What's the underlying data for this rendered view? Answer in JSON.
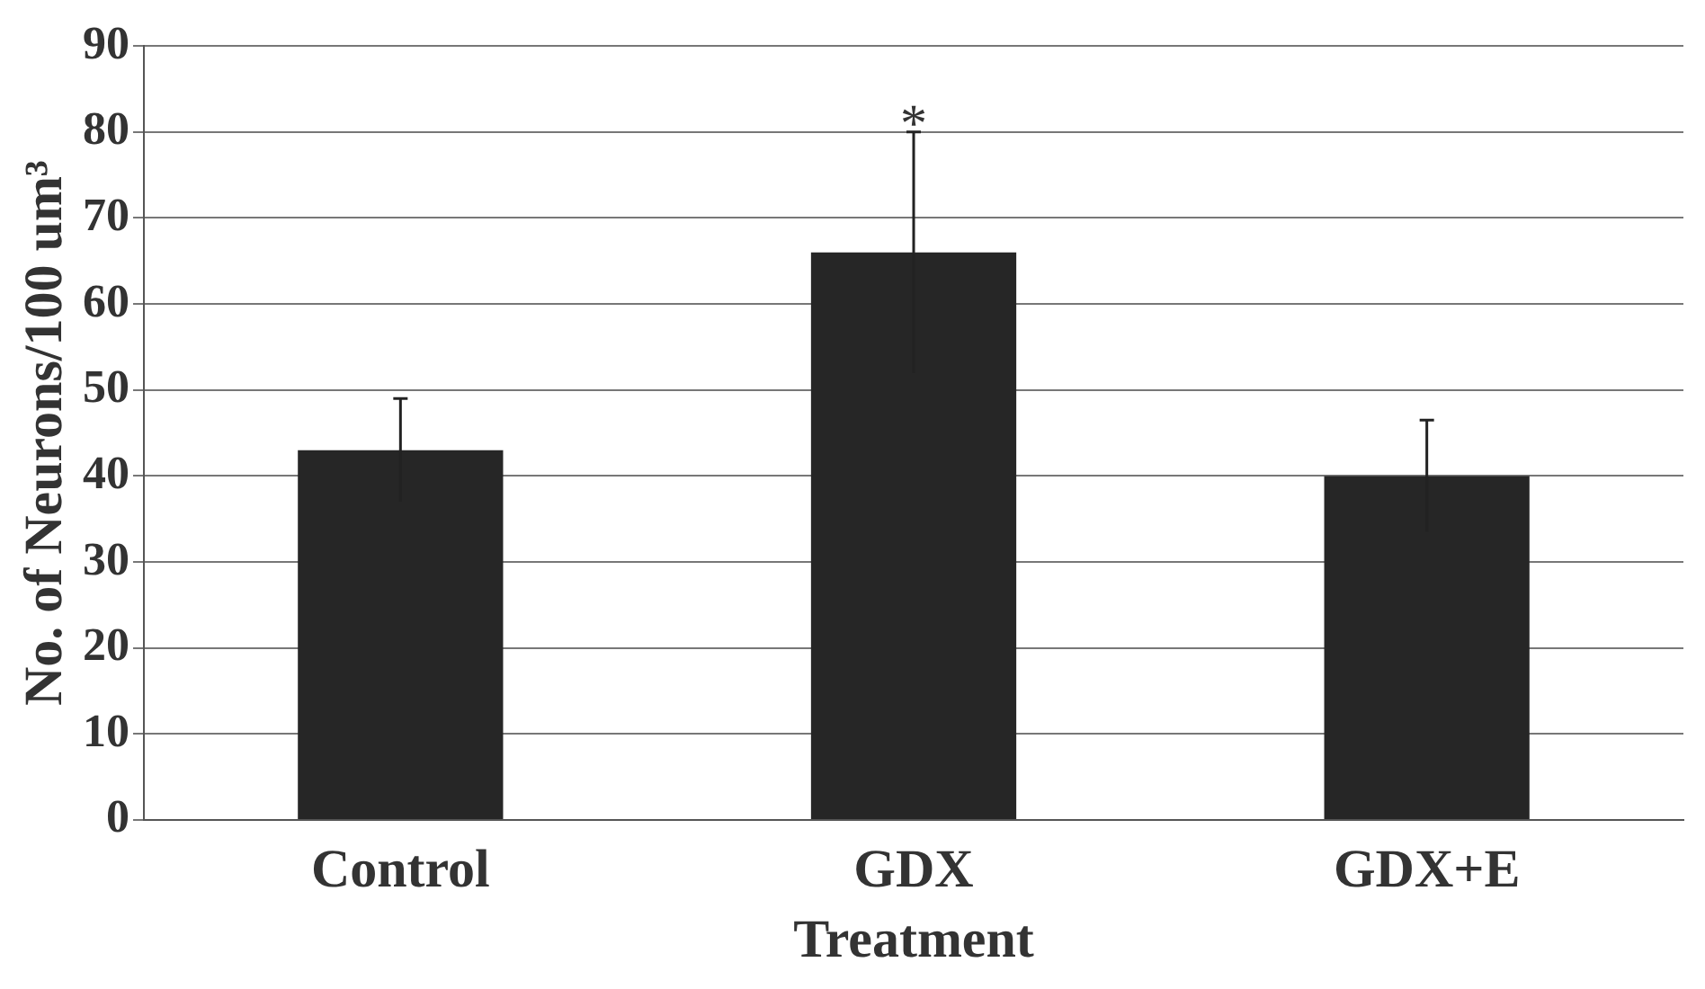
{
  "chart_data": {
    "type": "bar",
    "xlabel": "Treatment",
    "ylabel": "No. of Neurons/100 um³",
    "categories": [
      "Control",
      "GDX",
      "GDX+E"
    ],
    "values": [
      43,
      66,
      40
    ],
    "errors": [
      6,
      14,
      6.5
    ],
    "color": "#262626",
    "ylim": [
      0,
      90
    ],
    "yticks": [
      0,
      10,
      20,
      30,
      40,
      50,
      60,
      70,
      80,
      90
    ],
    "grid": "y",
    "annotations": [
      {
        "text": "*",
        "x": "GDX",
        "y": 80
      }
    ]
  }
}
